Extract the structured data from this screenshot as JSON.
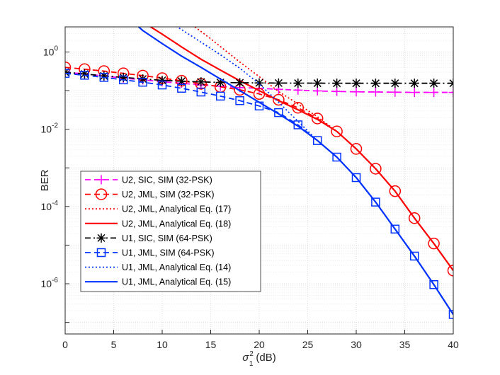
{
  "chart_data": {
    "type": "line",
    "title": "",
    "xlabel": "σ₁² (dB)",
    "xlabel_parts": {
      "base": "σ",
      "sup": "2",
      "sub": "1",
      "unit": "(dB)"
    },
    "ylabel": "BER",
    "xlim": [
      0,
      40
    ],
    "ylim_log10": [
      -7.3,
      0.65
    ],
    "y_scale": "log",
    "grid": true,
    "minor_grid": true,
    "legend_position": "lower-left",
    "x_ticks": [
      0,
      5,
      10,
      15,
      20,
      25,
      30,
      35,
      40
    ],
    "y_ticks": [
      {
        "exp": "0"
      },
      {
        "exp": "-2"
      },
      {
        "exp": "-4"
      },
      {
        "exp": "-6"
      }
    ],
    "y_tick_base": "10",
    "colors": {
      "magenta": "#ff00ff",
      "red": "#ff0000",
      "black": "#000000",
      "blue": "#0033ff",
      "axis": "#262626",
      "grid": "#e0e0e0"
    },
    "series": [
      {
        "name": "U2, SIC, SIM (32-PSK)",
        "color": "#ff00ff",
        "dash": "dashed",
        "marker": "plus",
        "x": [
          0,
          2,
          4,
          6,
          8,
          10,
          12,
          14,
          16,
          18,
          20,
          22,
          24,
          26,
          28,
          30,
          32,
          34,
          36,
          38,
          40
        ],
        "y": [
          0.3,
          0.27,
          0.24,
          0.21,
          0.19,
          0.17,
          0.155,
          0.14,
          0.13,
          0.12,
          0.115,
          0.108,
          0.103,
          0.098,
          0.095,
          0.093,
          0.092,
          0.091,
          0.09,
          0.09,
          0.09
        ]
      },
      {
        "name": "U2, JML, SIM (32-PSK)",
        "color": "#ff0000",
        "dash": "dashed",
        "marker": "circle",
        "x": [
          0,
          2,
          4,
          6,
          8,
          10,
          12,
          14,
          16,
          18,
          20,
          22,
          24,
          26,
          28,
          30,
          32,
          34,
          36,
          38,
          40
        ],
        "y": [
          0.4,
          0.36,
          0.32,
          0.28,
          0.245,
          0.21,
          0.18,
          0.15,
          0.125,
          0.105,
          0.082,
          0.058,
          0.036,
          0.019,
          0.0088,
          0.0031,
          0.00095,
          0.00025,
          5e-05,
          1.1e-05,
          2.2e-06
        ]
      },
      {
        "name": "U2, JML, Analytical Eq. (17)",
        "color": "#ff0000",
        "dash": "dotted",
        "marker": "none",
        "x": [
          24,
          26,
          28,
          30,
          32,
          34,
          36,
          38,
          40
        ],
        "y": [
          0.045,
          0.021,
          0.0088,
          0.0031,
          0.00095,
          0.00025,
          5e-05,
          1.1e-05,
          2.2e-06
        ],
        "y_curve_head": {
          "x": [
            12.5,
            15,
            18,
            20,
            22
          ],
          "y": [
            6.5,
            2.2,
            0.55,
            0.23,
            0.095
          ]
        }
      },
      {
        "name": "U2, JML, Analytical Eq. (18)",
        "color": "#ff0000",
        "dash": "solid",
        "marker": "none",
        "x": [
          8,
          10,
          12,
          14,
          16,
          18,
          20,
          22,
          24,
          26,
          28,
          30,
          32,
          34,
          36,
          38,
          40
        ],
        "y": [
          6.0,
          2.9,
          1.35,
          0.65,
          0.34,
          0.18,
          0.1,
          0.055,
          0.032,
          0.018,
          0.0088,
          0.0031,
          0.00095,
          0.00025,
          5e-05,
          1.1e-05,
          2.2e-06
        ]
      },
      {
        "name": "U1, SIC, SIM (64-PSK)",
        "color": "#000000",
        "dash": "dashdot",
        "marker": "star",
        "x": [
          0,
          2,
          4,
          6,
          8,
          10,
          12,
          14,
          16,
          18,
          20,
          22,
          24,
          26,
          28,
          30,
          32,
          34,
          36,
          38,
          40
        ],
        "y": [
          0.3,
          0.27,
          0.24,
          0.22,
          0.2,
          0.185,
          0.175,
          0.168,
          0.163,
          0.16,
          0.158,
          0.157,
          0.156,
          0.156,
          0.155,
          0.155,
          0.155,
          0.155,
          0.155,
          0.155,
          0.155
        ]
      },
      {
        "name": "U1, JML, SIM (64-PSK)",
        "color": "#0033ff",
        "dash": "dashed",
        "marker": "square",
        "x": [
          0,
          2,
          4,
          6,
          8,
          10,
          12,
          14,
          16,
          18,
          20,
          22,
          24,
          26,
          28,
          30,
          32,
          34,
          36,
          38,
          40
        ],
        "y": [
          0.28,
          0.25,
          0.22,
          0.19,
          0.165,
          0.14,
          0.115,
          0.092,
          0.072,
          0.055,
          0.04,
          0.027,
          0.013,
          0.0051,
          0.0019,
          0.00056,
          0.00013,
          2.6e-05,
          5.2e-06,
          9.5e-07,
          1.6e-07
        ]
      },
      {
        "name": "U1, JML, Analytical Eq. (14)",
        "color": "#0033ff",
        "dash": "dotted",
        "marker": "none",
        "x": [
          10.5,
          12,
          14,
          16,
          18,
          20,
          22,
          24,
          26,
          28,
          30,
          32,
          34,
          36,
          38,
          40
        ],
        "y": [
          6.5,
          3.8,
          1.8,
          0.85,
          0.38,
          0.15,
          0.05,
          0.016,
          0.0051,
          0.0019,
          0.00056,
          0.00013,
          2.6e-05,
          5.2e-06,
          9.5e-07,
          1.6e-07
        ]
      },
      {
        "name": "U1, JML, Analytical Eq. (15)",
        "color": "#0033ff",
        "dash": "solid",
        "marker": "none",
        "x": [
          7,
          8,
          10,
          12,
          14,
          16,
          18,
          20,
          22,
          24,
          26,
          28,
          30,
          32,
          34,
          36,
          38,
          40
        ],
        "y": [
          6.0,
          3.6,
          1.65,
          0.78,
          0.4,
          0.2,
          0.1,
          0.05,
          0.025,
          0.012,
          0.0051,
          0.0019,
          0.00056,
          0.00013,
          2.6e-05,
          5.2e-06,
          9.5e-07,
          1.6e-07
        ]
      }
    ]
  }
}
